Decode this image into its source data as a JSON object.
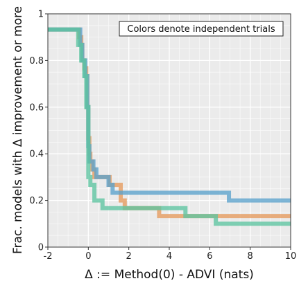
{
  "chart_data": {
    "type": "line",
    "title": "",
    "xlabel": "Δ := Method(0) - ADVI (nats)",
    "ylabel": "Frac. models with Δ improvement or more",
    "xlim": [
      -2,
      10
    ],
    "ylim": [
      0,
      1
    ],
    "x_ticks": [
      -2,
      0,
      2,
      4,
      6,
      8,
      10
    ],
    "x_tick_labels": [
      "-2",
      "0",
      "2",
      "4",
      "6",
      "8",
      "10"
    ],
    "y_ticks": [
      0,
      0.2,
      0.4,
      0.6,
      0.8,
      1
    ],
    "y_tick_labels": [
      "0",
      "0.2",
      "0.4",
      "0.6",
      "0.8",
      "1"
    ],
    "grid": true,
    "annotation": "Colors denote independent trials",
    "annotation_position": "top-right",
    "series": [
      {
        "color": "#e69a5c",
        "points": [
          [
            -2,
            0.933
          ],
          [
            -0.45,
            0.933
          ],
          [
            -0.45,
            0.9
          ],
          [
            -0.35,
            0.9
          ],
          [
            -0.35,
            0.867
          ],
          [
            -0.3,
            0.867
          ],
          [
            -0.3,
            0.8
          ],
          [
            -0.2,
            0.8
          ],
          [
            -0.2,
            0.767
          ],
          [
            -0.1,
            0.767
          ],
          [
            -0.1,
            0.733
          ],
          [
            -0.05,
            0.733
          ],
          [
            -0.05,
            0.6
          ],
          [
            0.0,
            0.6
          ],
          [
            0.0,
            0.467
          ],
          [
            0.05,
            0.467
          ],
          [
            0.05,
            0.4
          ],
          [
            0.1,
            0.4
          ],
          [
            0.1,
            0.367
          ],
          [
            0.2,
            0.367
          ],
          [
            0.2,
            0.333
          ],
          [
            0.3,
            0.333
          ],
          [
            0.3,
            0.3
          ],
          [
            1.05,
            0.3
          ],
          [
            1.05,
            0.267
          ],
          [
            1.6,
            0.267
          ],
          [
            1.6,
            0.2
          ],
          [
            1.8,
            0.2
          ],
          [
            1.8,
            0.167
          ],
          [
            3.5,
            0.167
          ],
          [
            3.5,
            0.133
          ],
          [
            10,
            0.133
          ]
        ]
      },
      {
        "color": "#5aa2cc",
        "points": [
          [
            -2,
            0.933
          ],
          [
            -0.4,
            0.933
          ],
          [
            -0.4,
            0.867
          ],
          [
            -0.3,
            0.867
          ],
          [
            -0.3,
            0.8
          ],
          [
            -0.15,
            0.8
          ],
          [
            -0.15,
            0.733
          ],
          [
            -0.05,
            0.733
          ],
          [
            -0.05,
            0.6
          ],
          [
            0.0,
            0.6
          ],
          [
            0.0,
            0.433
          ],
          [
            0.05,
            0.433
          ],
          [
            0.05,
            0.367
          ],
          [
            0.25,
            0.367
          ],
          [
            0.25,
            0.333
          ],
          [
            0.4,
            0.333
          ],
          [
            0.4,
            0.3
          ],
          [
            1.0,
            0.3
          ],
          [
            1.0,
            0.267
          ],
          [
            1.2,
            0.267
          ],
          [
            1.2,
            0.233
          ],
          [
            6.95,
            0.233
          ],
          [
            6.95,
            0.2
          ],
          [
            10,
            0.2
          ]
        ]
      },
      {
        "color": "#5cc4a0",
        "points": [
          [
            -2,
            0.933
          ],
          [
            -0.5,
            0.933
          ],
          [
            -0.5,
            0.867
          ],
          [
            -0.35,
            0.867
          ],
          [
            -0.35,
            0.8
          ],
          [
            -0.2,
            0.8
          ],
          [
            -0.2,
            0.733
          ],
          [
            -0.1,
            0.733
          ],
          [
            -0.1,
            0.6
          ],
          [
            0.0,
            0.6
          ],
          [
            0.0,
            0.3
          ],
          [
            0.1,
            0.3
          ],
          [
            0.1,
            0.267
          ],
          [
            0.3,
            0.267
          ],
          [
            0.3,
            0.2
          ],
          [
            0.7,
            0.2
          ],
          [
            0.7,
            0.167
          ],
          [
            4.8,
            0.167
          ],
          [
            4.8,
            0.133
          ],
          [
            6.3,
            0.133
          ],
          [
            6.3,
            0.1
          ],
          [
            10,
            0.1
          ]
        ]
      }
    ]
  }
}
